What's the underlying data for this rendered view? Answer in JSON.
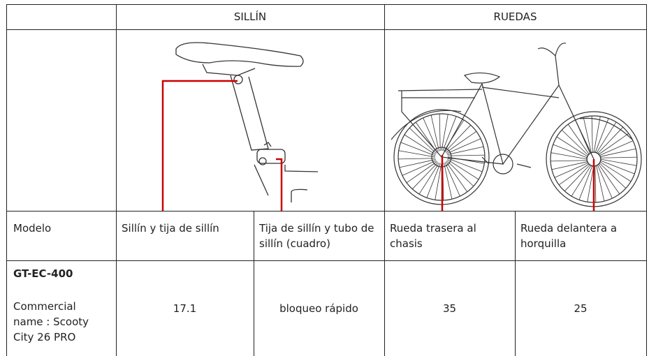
{
  "table": {
    "groups": [
      "SILLÍN",
      "RUEDAS"
    ],
    "columns": [
      "Modelo",
      "Sillín y tija de sillín",
      "Tija de sillín y tubo de sillín (cuadro)",
      "Rueda trasera al chasis",
      "Rueda delantera a horquilla"
    ],
    "rows": [
      {
        "model": "GT-EC-400",
        "name": "Commercial name : Scooty City 26 PRO",
        "values": [
          17.1,
          "bloqueo rápido",
          35,
          25
        ]
      }
    ]
  }
}
